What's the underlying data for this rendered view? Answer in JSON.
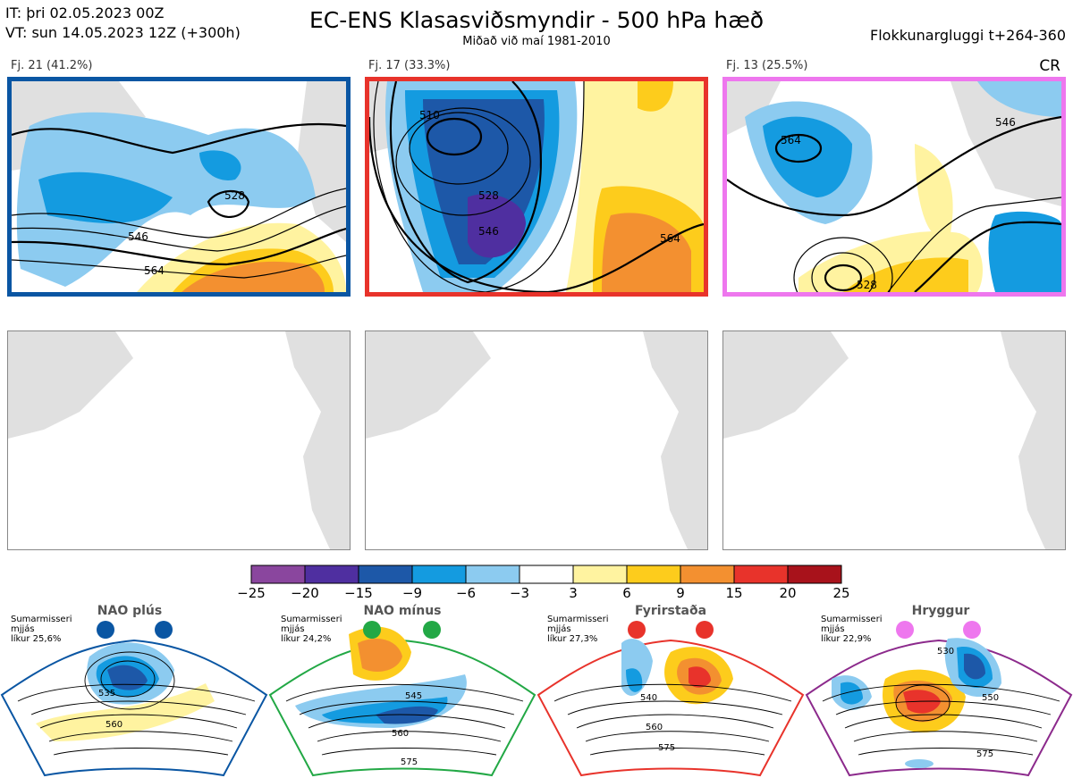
{
  "header": {
    "it_line": "IT: þri 02.05.2023 00Z",
    "vt_line": "VT: sun 14.05.2023 12Z  (+300h)",
    "title": "EC-ENS Klasasviðsmyndir - 500 hPa hæð",
    "subtitle": "Miðað við maí 1981-2010",
    "window": "Flokkunargluggi t+264-360",
    "cr": "CR"
  },
  "clusters": [
    {
      "label": "Fj. 21 (41.2%)",
      "border_color": "#0a56a3",
      "contours": [
        "546",
        "528",
        "564"
      ]
    },
    {
      "label": "Fj. 17 (33.3%)",
      "border_color": "#e8332b",
      "contours": [
        "510",
        "528",
        "546",
        "564"
      ]
    },
    {
      "label": "Fj. 13 (25.5%)",
      "border_color": "#ee77ee",
      "contours": [
        "546",
        "564",
        "528"
      ]
    }
  ],
  "colorbar": {
    "ticks": [
      "−25",
      "−20",
      "−15",
      "−9",
      "−6",
      "−3",
      "3",
      "6",
      "9",
      "15",
      "20",
      "25"
    ],
    "colors": [
      "#8a469e",
      "#4f2fa0",
      "#1d58a8",
      "#149be0",
      "#8ccbf0",
      "#ffffff",
      "#fff3a0",
      "#fdcc1c",
      "#f39030",
      "#e8332b",
      "#a8121b"
    ]
  },
  "regimes": [
    {
      "name": "NAO plús",
      "season": "Sumarmisseri",
      "smooth": "mjjás",
      "prob": "líkur 25,6%",
      "color": "#0a56a3",
      "contours": [
        "535",
        "560"
      ]
    },
    {
      "name": "NAO mínus",
      "season": "Sumarmisseri",
      "smooth": "mjjás",
      "prob": "líkur 24,2%",
      "color": "#22a845",
      "contours": [
        "545",
        "560",
        "575"
      ]
    },
    {
      "name": "Fyrirstaða",
      "season": "Sumarmisseri",
      "smooth": "mjjás",
      "prob": "líkur 27,3%",
      "color": "#e8332b",
      "contours": [
        "540",
        "560",
        "575"
      ]
    },
    {
      "name": "Hryggur",
      "season": "Sumarmisseri",
      "smooth": "mjjás",
      "prob": "líkur 22,9%",
      "color": "#8c2a8c",
      "contours": [
        "530",
        "550",
        "575"
      ]
    }
  ]
}
